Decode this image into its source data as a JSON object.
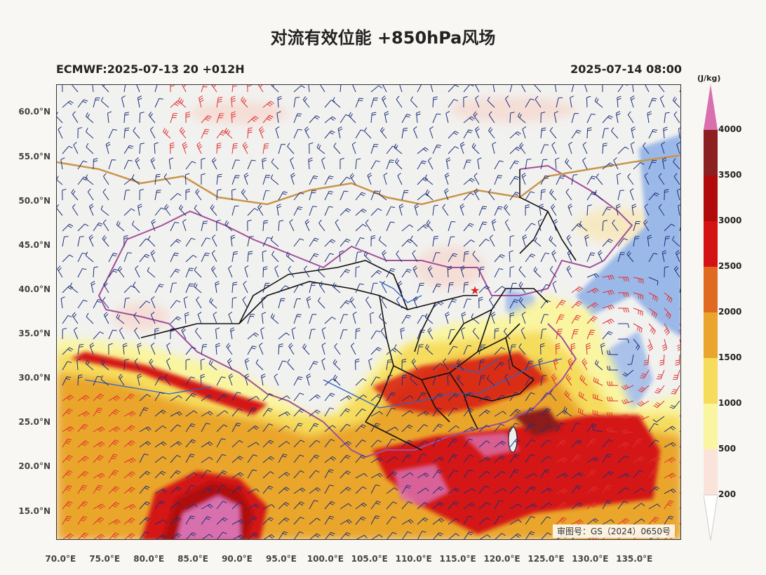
{
  "title": "对流有效位能 +850hPa风场",
  "subtitle_left": "ECMWF:2025-07-13 20 +012H",
  "subtitle_right": "2025-07-14 08:00",
  "watermark": "审图号：GS（2024）0650号",
  "map_extent": {
    "lon_min": 69.5,
    "lon_max": 140.3,
    "lat_min": 11.8,
    "lat_max": 63.2
  },
  "latitude_labels": [
    "15.0°N",
    "20.0°N",
    "25.0°N",
    "30.0°N",
    "35.0°N",
    "40.0°N",
    "45.0°N",
    "50.0°N",
    "55.0°N",
    "60.0°N"
  ],
  "longitude_labels": [
    "70.0°E",
    "75.0°E",
    "80.0°E",
    "85.0°E",
    "90.0°E",
    "95.0°E",
    "100.0°E",
    "105.0°E",
    "110.0°E",
    "115.0°E",
    "120.0°E",
    "125.0°E",
    "130.0°E",
    "135.0°E"
  ],
  "colorbar": {
    "unit": "(J/kg)",
    "levels": [
      "200",
      "500",
      "1000",
      "1500",
      "2000",
      "2500",
      "3000",
      "3500",
      "4000"
    ],
    "colors": [
      "#ffffff",
      "#fbe3dc",
      "#faf5a0",
      "#f6dc5c",
      "#eaa62c",
      "#e06a22",
      "#d41414",
      "#b00a0a",
      "#8c1f1f",
      "#d96fae"
    ]
  },
  "legend_colors": {
    "cape_low": "#f6d0c4",
    "wind_barb_weak": "#1e2f7a",
    "wind_barb_strong": "#e03030",
    "province_border": "#111111",
    "national_border": "#a0509a",
    "river": "#2a64c8",
    "low_cape_blue": "#9ab8e8"
  },
  "marker": {
    "name": "Beijing",
    "symbol": "★"
  }
}
